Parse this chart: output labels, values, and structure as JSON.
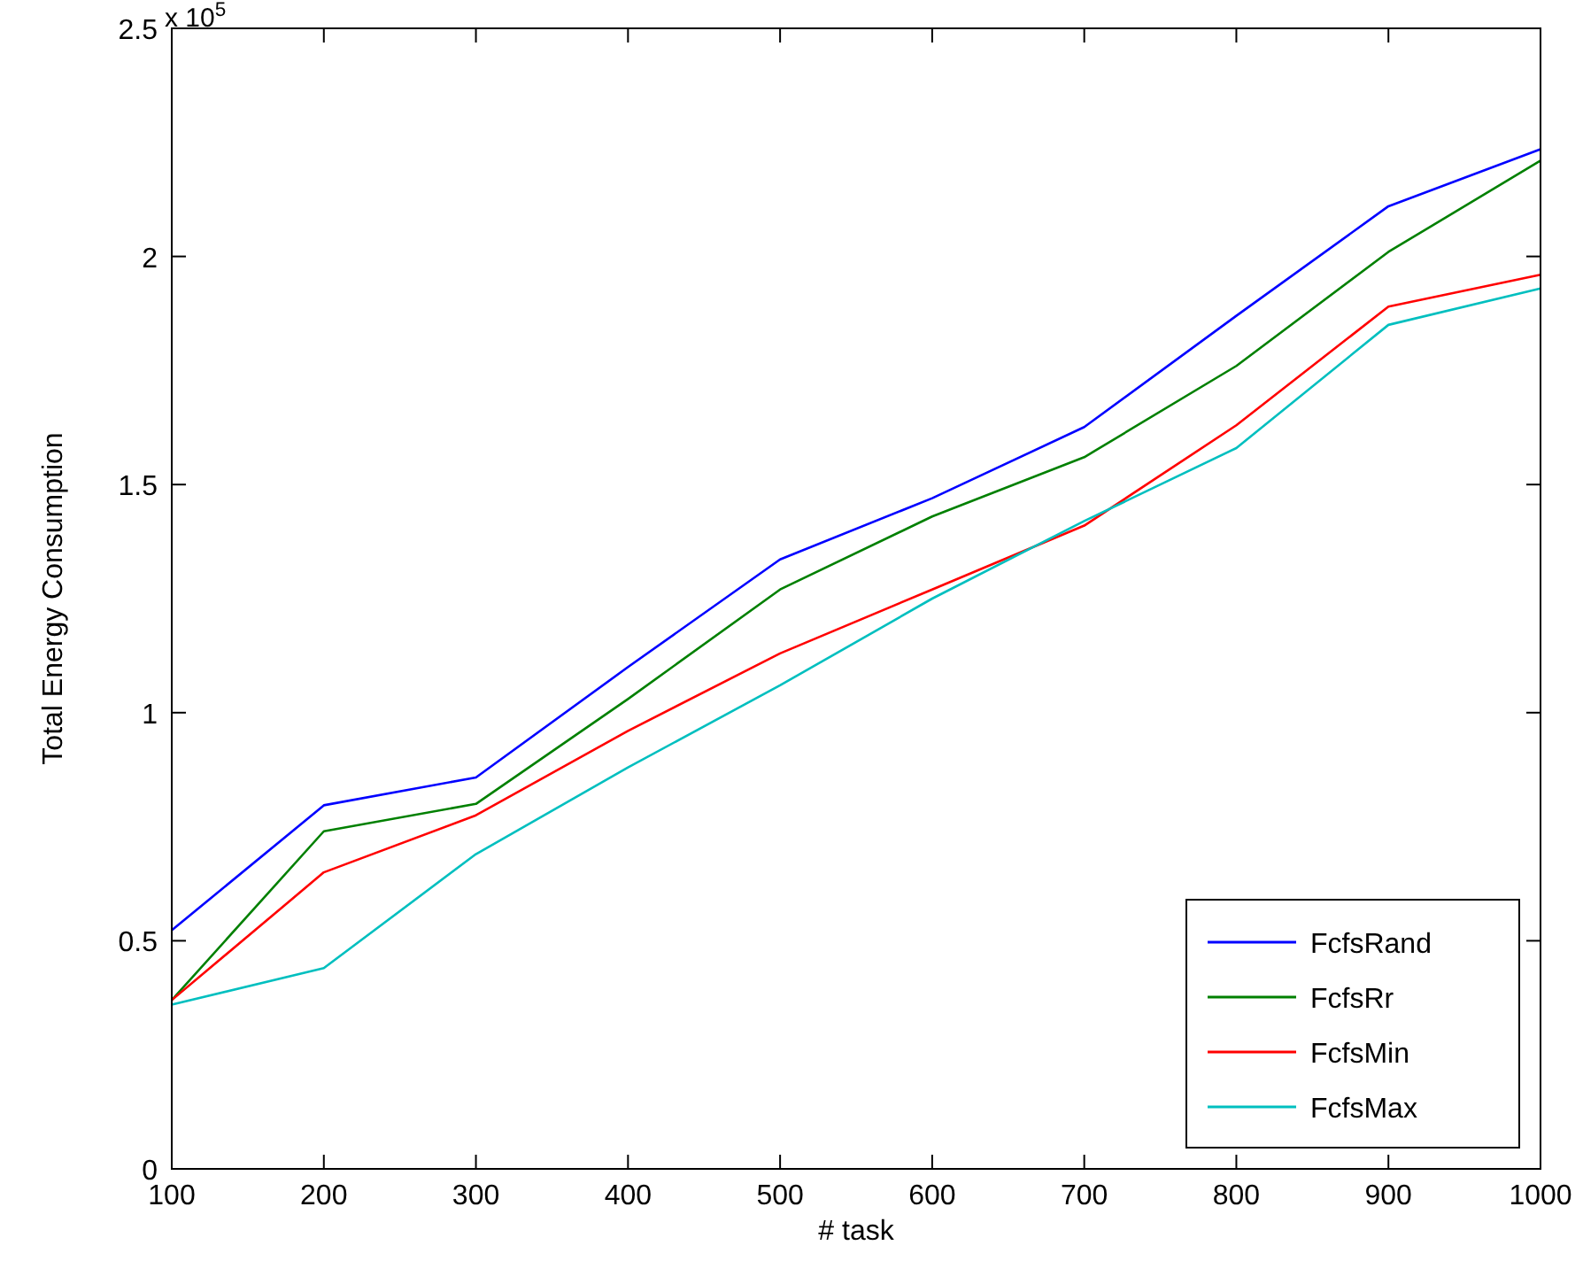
{
  "chart_data": {
    "type": "line",
    "xlabel": "# task",
    "ylabel": "Total Energy Consumption",
    "x": [
      100,
      200,
      300,
      400,
      500,
      600,
      700,
      800,
      900,
      1000
    ],
    "series": [
      {
        "name": "FcfsRand",
        "color": "#0000ff",
        "values": [
          0.523,
          0.797,
          0.858,
          1.1,
          1.336,
          1.47,
          1.626,
          1.87,
          2.11,
          2.235
        ]
      },
      {
        "name": "FcfsRr",
        "color": "#008000",
        "values": [
          0.37,
          0.74,
          0.8,
          1.03,
          1.27,
          1.43,
          1.56,
          1.76,
          2.01,
          2.21
        ]
      },
      {
        "name": "FcfsMin",
        "color": "#ff0000",
        "values": [
          0.37,
          0.65,
          0.775,
          0.96,
          1.13,
          1.27,
          1.41,
          1.63,
          1.89,
          1.96
        ]
      },
      {
        "name": "FcfsMax",
        "color": "#00bfbf",
        "values": [
          0.36,
          0.44,
          0.69,
          0.88,
          1.06,
          1.25,
          1.42,
          1.58,
          1.85,
          1.93
        ]
      }
    ],
    "xlim": [
      100,
      1000
    ],
    "xticks": [
      100,
      200,
      300,
      400,
      500,
      600,
      700,
      800,
      900,
      1000
    ],
    "ylim": [
      0,
      2.5
    ],
    "yticks": [
      0,
      0.5,
      1,
      1.5,
      2,
      2.5
    ],
    "annotations": [
      "x 10$^{5}$"
    ],
    "legend": "bottom right",
    "grid": false,
    "marker": "none",
    "line_style": "solid"
  }
}
